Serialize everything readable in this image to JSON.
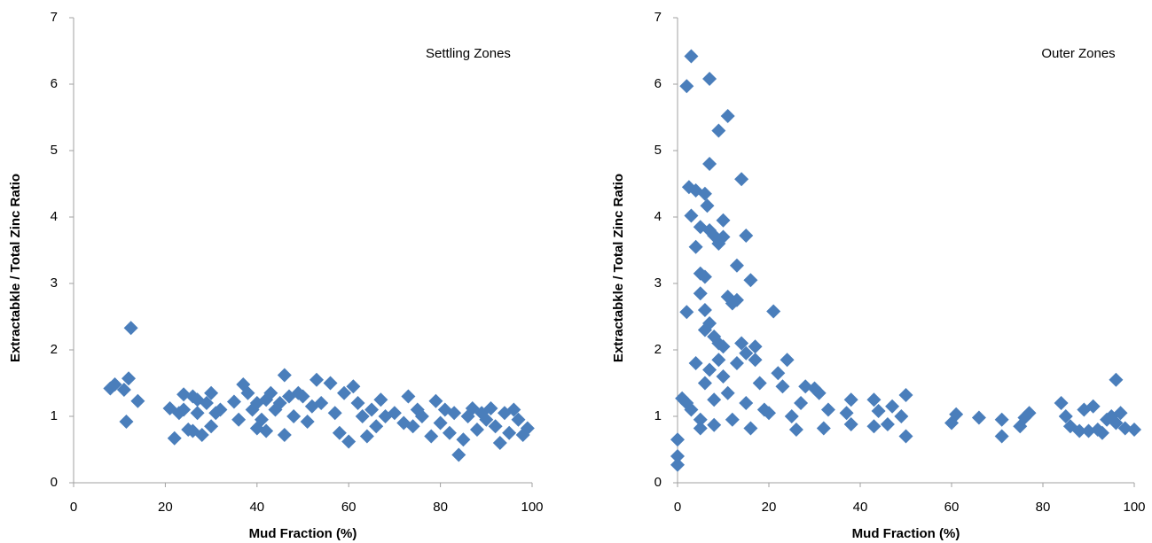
{
  "chart_data": [
    {
      "type": "scatter",
      "annotation": "Settling Zones",
      "x_label": "Mud Fraction (%)",
      "y_label": "Extractabkle / Total Zinc Ratio",
      "color": "#4a7ebb",
      "xlim": [
        0,
        100
      ],
      "xticks": [
        0,
        20,
        40,
        60,
        80,
        100
      ],
      "ylim": [
        0,
        7
      ],
      "yticks": [
        0,
        1,
        2,
        3,
        4,
        5,
        6,
        7
      ],
      "x": [
        8,
        9,
        11,
        12,
        12.5,
        11.5,
        14,
        21,
        22,
        23,
        24,
        24,
        25,
        26,
        26,
        27,
        27,
        28,
        29,
        30,
        30,
        31,
        32,
        35,
        36,
        37,
        38,
        39,
        40,
        40,
        41,
        42,
        42,
        43,
        44,
        45,
        46,
        46,
        47,
        48,
        49,
        50,
        51,
        52,
        53,
        54,
        56,
        57,
        58,
        59,
        60,
        61,
        62,
        63,
        64,
        65,
        66,
        67,
        68,
        70,
        72,
        73,
        74,
        75,
        76,
        78,
        79,
        80,
        81,
        82,
        83,
        84,
        85,
        86,
        87,
        88,
        89,
        90,
        91,
        92,
        93,
        94,
        95,
        96,
        97,
        98,
        99
      ],
      "values": [
        1.42,
        1.48,
        1.4,
        1.57,
        2.33,
        0.92,
        1.23,
        1.12,
        0.67,
        1.05,
        1.1,
        1.33,
        0.8,
        1.3,
        0.78,
        1.05,
        1.25,
        0.72,
        1.2,
        1.35,
        0.85,
        1.05,
        1.1,
        1.22,
        0.95,
        1.48,
        1.35,
        1.1,
        0.82,
        1.2,
        0.95,
        0.78,
        1.25,
        1.35,
        1.1,
        1.2,
        0.72,
        1.62,
        1.3,
        1.0,
        1.35,
        1.3,
        0.92,
        1.15,
        1.55,
        1.2,
        1.5,
        1.05,
        0.75,
        1.35,
        0.62,
        1.45,
        1.2,
        1.0,
        0.7,
        1.1,
        0.85,
        1.25,
        1.0,
        1.05,
        0.9,
        1.3,
        0.85,
        1.1,
        1.0,
        0.7,
        1.23,
        0.9,
        1.1,
        0.75,
        1.05,
        0.42,
        0.65,
        1.0,
        1.12,
        0.8,
        1.05,
        0.95,
        1.12,
        0.85,
        0.6,
        1.05,
        0.75,
        1.1,
        0.95,
        0.72,
        0.82
      ]
    },
    {
      "type": "scatter",
      "annotation": "Outer Zones",
      "x_label": "Mud Fraction (%)",
      "y_label": "Extractabkle / Total Zinc Ratio",
      "color": "#4a7ebb",
      "xlim": [
        0,
        100
      ],
      "xticks": [
        0,
        20,
        40,
        60,
        80,
        100
      ],
      "ylim": [
        0,
        7
      ],
      "yticks": [
        0,
        1,
        2,
        3,
        4,
        5,
        6,
        7
      ],
      "x": [
        0,
        0,
        0,
        1,
        2,
        2,
        2,
        2.5,
        3,
        3,
        3,
        4,
        4,
        4,
        5,
        5,
        5,
        5,
        5,
        6,
        6,
        6,
        6,
        6,
        6.5,
        7,
        7,
        7,
        7,
        7,
        8,
        8,
        8,
        8,
        9,
        9,
        9,
        9,
        10,
        10,
        10,
        10,
        11,
        11,
        11,
        12,
        12,
        13,
        13,
        13,
        14,
        14,
        15,
        15,
        15,
        16,
        16,
        17,
        17,
        18,
        19,
        20,
        21,
        22,
        23,
        24,
        25,
        26,
        27,
        28,
        30,
        31,
        32,
        33,
        37,
        38,
        38,
        43,
        43,
        44,
        46,
        47,
        49,
        50,
        50,
        60,
        61,
        66,
        71,
        71,
        75,
        76,
        77,
        84,
        85,
        86,
        88,
        89,
        90,
        91,
        92,
        93,
        94,
        95,
        96,
        96,
        97,
        98,
        100
      ],
      "values": [
        0.27,
        0.4,
        0.65,
        1.27,
        1.2,
        2.57,
        5.97,
        4.45,
        6.42,
        4.02,
        1.1,
        4.4,
        3.55,
        1.8,
        3.15,
        3.85,
        2.85,
        0.95,
        0.82,
        2.6,
        2.3,
        1.5,
        3.1,
        4.35,
        4.17,
        6.08,
        4.8,
        3.8,
        2.4,
        1.7,
        3.72,
        2.2,
        1.25,
        0.87,
        5.3,
        3.6,
        2.1,
        1.85,
        3.95,
        3.7,
        2.05,
        1.6,
        5.52,
        2.8,
        1.35,
        2.7,
        0.95,
        3.27,
        2.75,
        1.8,
        4.57,
        2.1,
        3.72,
        1.95,
        1.2,
        0.82,
        3.05,
        1.85,
        2.05,
        1.5,
        1.1,
        1.05,
        2.58,
        1.65,
        1.45,
        1.85,
        1.0,
        0.8,
        1.2,
        1.45,
        1.42,
        1.35,
        0.82,
        1.1,
        1.05,
        1.25,
        0.88,
        1.25,
        0.85,
        1.08,
        0.88,
        1.15,
        1.0,
        1.32,
        0.7,
        0.9,
        1.03,
        0.98,
        0.95,
        0.7,
        0.85,
        0.98,
        1.05,
        1.2,
        1.0,
        0.85,
        0.78,
        1.1,
        0.78,
        1.15,
        0.8,
        0.75,
        0.95,
        1.0,
        1.55,
        0.9,
        1.05,
        0.82,
        0.8
      ]
    }
  ]
}
